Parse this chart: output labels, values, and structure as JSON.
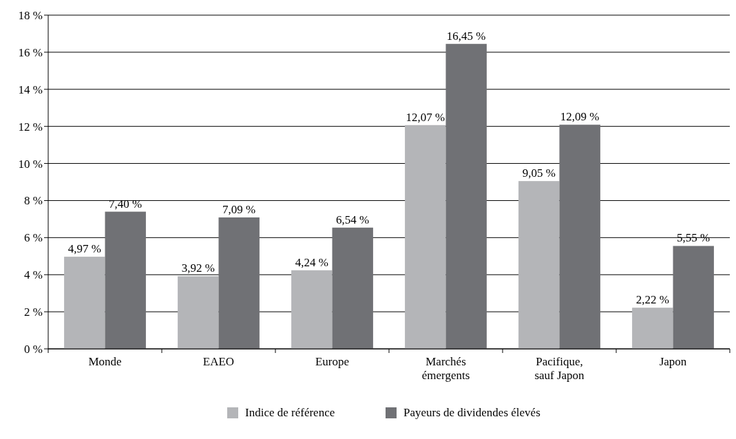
{
  "chart_data": {
    "type": "bar",
    "categories": [
      "Monde",
      "EAEO",
      "Europe",
      "Marchés émergents",
      "Pacifique, sauf Japon",
      "Japon"
    ],
    "series": [
      {
        "name": "Indice de référence",
        "color": "#b4b5b8",
        "values": [
          4.97,
          3.92,
          4.24,
          12.07,
          9.05,
          2.22
        ],
        "value_labels": [
          "4,97 %",
          "3,92 %",
          "4,24 %",
          "12,07 %",
          "9,05 %",
          "2,22 %"
        ]
      },
      {
        "name": "Payeurs de dividendes élevés",
        "color": "#707175",
        "values": [
          7.4,
          7.09,
          6.54,
          16.45,
          12.09,
          5.55
        ],
        "value_labels": [
          "7,40 %",
          "7,09 %",
          "6,54 %",
          "16,45 %",
          "12,09 %",
          "5,55 %"
        ]
      }
    ],
    "ylim": [
      0,
      18
    ],
    "yticks": [
      {
        "value": 0,
        "label": "0 %"
      },
      {
        "value": 2,
        "label": "2 %"
      },
      {
        "value": 4,
        "label": "4 %"
      },
      {
        "value": 6,
        "label": "6 %"
      },
      {
        "value": 8,
        "label": "8 %"
      },
      {
        "value": 10,
        "label": "10 %"
      },
      {
        "value": 12,
        "label": "12 %"
      },
      {
        "value": 14,
        "label": "14 %"
      },
      {
        "value": 16,
        "label": "16 %"
      },
      {
        "value": 18,
        "label": "18 %"
      }
    ],
    "grid": "y",
    "legend": "bottom"
  }
}
